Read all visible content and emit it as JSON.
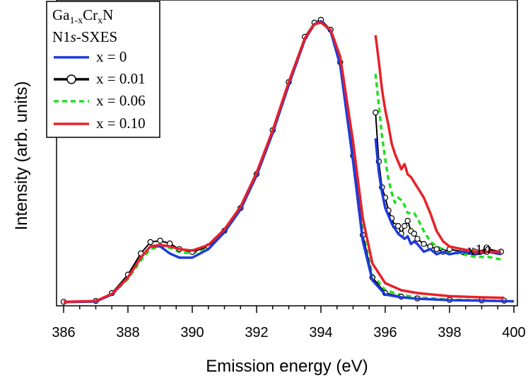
{
  "chart_data": {
    "type": "line",
    "title": "",
    "xlabel": "Emission energy (eV)",
    "ylabel": "Intensity (arb. units)",
    "xlim": [
      385.9,
      400.1
    ],
    "ylim": [
      0,
      1.02
    ],
    "xticks": [
      "386",
      "388",
      "390",
      "392",
      "394",
      "396",
      "398",
      "400"
    ],
    "grid": false,
    "legend": {
      "placement": "top-left",
      "title_line1_base": "Ga",
      "title_line1_sub1": "1-x",
      "title_line1_mid": "Cr",
      "title_line1_sub2": "x",
      "title_line1_end": "N",
      "title_line2_pre": "N1",
      "title_line2_italic": "s",
      "title_line2_post": "-SXES"
    },
    "annotation": "x10",
    "colors": {
      "x0": "#1f3bdc",
      "x001": "#000000",
      "x006": "#22dd22",
      "x010": "#e8202a"
    },
    "series": [
      {
        "name": "x = 0",
        "style": "solid",
        "x": [
          386.0,
          387.0,
          387.5,
          388.0,
          388.4,
          388.7,
          389.0,
          389.3,
          389.6,
          390.0,
          390.5,
          391.0,
          391.5,
          392.0,
          392.5,
          393.0,
          393.5,
          393.8,
          394.0,
          394.3,
          394.6,
          395.0,
          395.3,
          395.6,
          396.0,
          396.5,
          397.0,
          398.0,
          399.0,
          400.0
        ],
        "values": [
          0.003,
          0.005,
          0.03,
          0.09,
          0.16,
          0.2,
          0.2,
          0.175,
          0.16,
          0.16,
          0.19,
          0.25,
          0.33,
          0.45,
          0.6,
          0.77,
          0.93,
          0.985,
          0.995,
          0.96,
          0.84,
          0.5,
          0.22,
          0.08,
          0.03,
          0.02,
          0.015,
          0.01,
          0.008,
          0.006
        ]
      },
      {
        "name": "x = 0.01",
        "style": "solid-with-circles",
        "x": [
          386.0,
          387.0,
          387.5,
          388.0,
          388.4,
          388.7,
          389.0,
          389.3,
          389.6,
          390.0,
          390.5,
          391.0,
          391.5,
          392.0,
          392.5,
          393.0,
          393.5,
          393.8,
          394.0,
          394.3,
          394.6,
          395.0,
          395.3,
          395.6,
          396.0,
          396.5,
          397.0,
          398.0,
          399.0,
          399.7
        ],
        "values": [
          0.004,
          0.007,
          0.035,
          0.1,
          0.175,
          0.215,
          0.22,
          0.21,
          0.19,
          0.18,
          0.2,
          0.255,
          0.335,
          0.455,
          0.61,
          0.78,
          0.94,
          0.99,
          1.0,
          0.965,
          0.85,
          0.52,
          0.24,
          0.09,
          0.035,
          0.022,
          0.016,
          0.011,
          0.009,
          0.008
        ]
      },
      {
        "name": "x = 0.06",
        "style": "dashed",
        "x": [
          386.0,
          387.0,
          387.5,
          388.0,
          388.4,
          388.7,
          389.0,
          389.3,
          389.6,
          390.0,
          390.5,
          391.0,
          391.5,
          392.0,
          392.5,
          393.0,
          393.5,
          393.8,
          394.0,
          394.3,
          394.6,
          395.0,
          395.3,
          395.6,
          396.0,
          396.5,
          397.0,
          398.0,
          399.0,
          399.7
        ],
        "values": [
          0.003,
          0.006,
          0.03,
          0.085,
          0.15,
          0.19,
          0.2,
          0.195,
          0.18,
          0.175,
          0.195,
          0.25,
          0.33,
          0.45,
          0.6,
          0.77,
          0.93,
          0.985,
          0.995,
          0.96,
          0.85,
          0.52,
          0.25,
          0.1,
          0.045,
          0.028,
          0.02,
          0.012,
          0.009,
          0.007
        ]
      },
      {
        "name": "x = 0.10",
        "style": "solid",
        "x": [
          386.0,
          387.0,
          387.5,
          388.0,
          388.4,
          388.7,
          389.0,
          389.3,
          389.6,
          390.0,
          390.5,
          391.0,
          391.5,
          392.0,
          392.5,
          393.0,
          393.5,
          393.8,
          394.0,
          394.3,
          394.6,
          395.0,
          395.3,
          395.6,
          396.0,
          396.5,
          397.0,
          398.0,
          399.0,
          399.7
        ],
        "values": [
          0.004,
          0.007,
          0.032,
          0.09,
          0.16,
          0.2,
          0.205,
          0.2,
          0.19,
          0.185,
          0.205,
          0.26,
          0.34,
          0.46,
          0.61,
          0.78,
          0.935,
          0.985,
          0.99,
          0.965,
          0.87,
          0.57,
          0.3,
          0.14,
          0.07,
          0.045,
          0.035,
          0.024,
          0.02,
          0.018
        ]
      }
    ],
    "inset_x10": {
      "note": "tail region magnified x10",
      "series": [
        {
          "name": "x = 0",
          "x": [
            395.7,
            395.8,
            395.9,
            396.0,
            396.1,
            396.2,
            396.3,
            396.4,
            396.5,
            396.6,
            396.7,
            396.8,
            396.9,
            397.0,
            397.2,
            397.4,
            397.6,
            397.8,
            398.0,
            398.4,
            398.8,
            399.2,
            399.6
          ],
          "values": [
            0.54,
            0.41,
            0.33,
            0.27,
            0.24,
            0.21,
            0.19,
            0.17,
            0.16,
            0.15,
            0.16,
            0.13,
            0.14,
            0.13,
            0.1,
            0.11,
            0.09,
            0.1,
            0.09,
            0.1,
            0.09,
            0.1,
            0.09
          ]
        },
        {
          "name": "x = 0.01",
          "x": [
            395.7,
            395.8,
            395.9,
            396.0,
            396.1,
            396.2,
            396.3,
            396.4,
            396.5,
            396.6,
            396.7,
            396.8,
            396.9,
            397.0,
            397.2,
            397.4,
            397.6,
            397.8,
            398.0,
            398.4,
            398.8,
            399.2,
            399.6
          ],
          "values": [
            0.64,
            0.45,
            0.35,
            0.31,
            0.26,
            0.23,
            0.2,
            0.2,
            0.17,
            0.2,
            0.22,
            0.18,
            0.17,
            0.15,
            0.13,
            0.12,
            0.11,
            0.1,
            0.11,
            0.1,
            0.1,
            0.11,
            0.1
          ]
        },
        {
          "name": "x = 0.06",
          "x": [
            395.7,
            395.8,
            395.9,
            396.0,
            396.1,
            396.2,
            396.3,
            396.4,
            396.5,
            396.6,
            396.7,
            396.8,
            396.9,
            397.0,
            397.2,
            397.4,
            397.6,
            397.8,
            398.0,
            398.4,
            398.8,
            399.2,
            399.6
          ],
          "values": [
            0.79,
            0.67,
            0.55,
            0.46,
            0.38,
            0.33,
            0.29,
            0.31,
            0.3,
            0.28,
            0.25,
            0.25,
            0.25,
            0.23,
            0.18,
            0.14,
            0.12,
            0.11,
            0.1,
            0.09,
            0.08,
            0.08,
            0.07
          ]
        },
        {
          "name": "x = 0.10",
          "x": [
            395.7,
            395.8,
            395.9,
            396.0,
            396.1,
            396.2,
            396.3,
            396.4,
            396.5,
            396.6,
            396.7,
            396.8,
            396.9,
            397.0,
            397.2,
            397.4,
            397.6,
            397.8,
            398.0,
            398.4,
            398.8,
            399.2,
            399.6
          ],
          "values": [
            0.94,
            0.84,
            0.73,
            0.65,
            0.59,
            0.52,
            0.48,
            0.45,
            0.42,
            0.44,
            0.4,
            0.39,
            0.37,
            0.35,
            0.31,
            0.25,
            0.18,
            0.14,
            0.12,
            0.11,
            0.1,
            0.1,
            0.1
          ]
        }
      ]
    }
  }
}
